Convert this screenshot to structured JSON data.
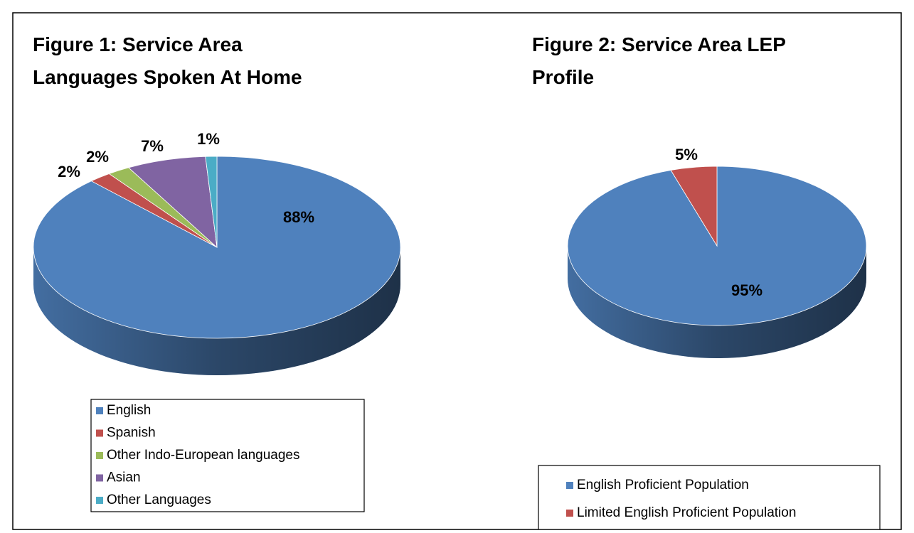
{
  "chart_data": [
    {
      "type": "pie",
      "title": "Figure 1: Service Area Languages Spoken At Home",
      "categories": [
        "English",
        "Spanish",
        "Other Indo-European languages",
        "Asian",
        "Other Languages"
      ],
      "values": [
        88,
        2,
        2,
        7,
        1
      ],
      "value_labels": [
        "88%",
        "2%",
        "2%",
        "7%",
        "1%"
      ],
      "colors": [
        "#4f81bd",
        "#c0504d",
        "#9bbb59",
        "#8064a2",
        "#4bacc6"
      ]
    },
    {
      "type": "pie",
      "title": "Figure 2: Service Area LEP Profile",
      "categories": [
        "English Proficient Population",
        "Limited English Proficient Population"
      ],
      "values": [
        95,
        5
      ],
      "value_labels": [
        "95%",
        "5%"
      ],
      "colors": [
        "#4f81bd",
        "#c0504d"
      ]
    }
  ]
}
